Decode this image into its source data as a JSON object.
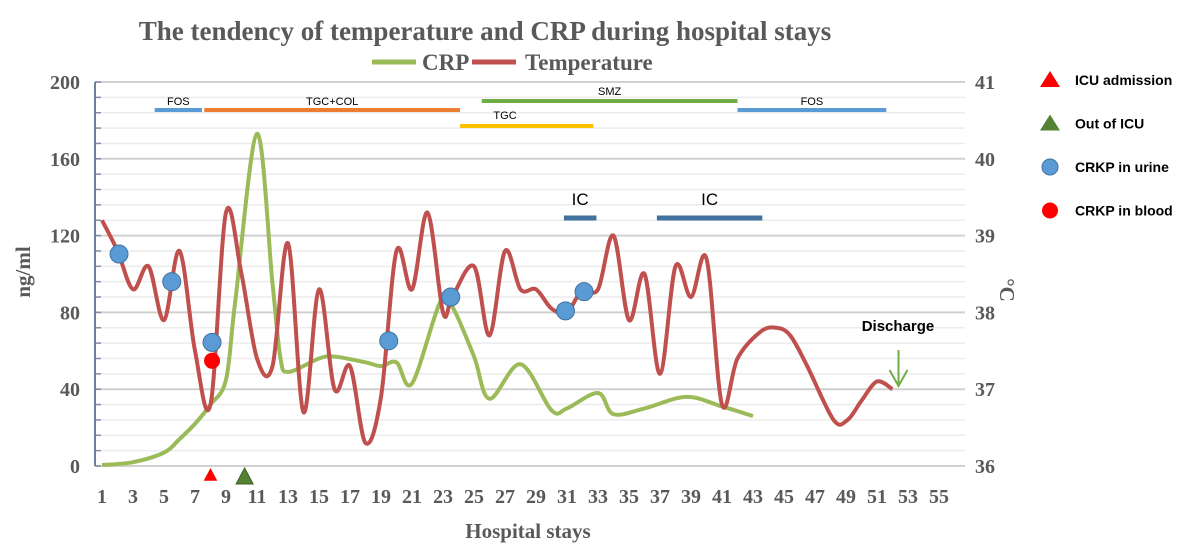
{
  "chart_data": {
    "type": "line",
    "title": "The tendency of temperature and CRP during hospital stays",
    "xlabel": "Hospital stays",
    "ylabel_left": "ng/ml",
    "ylabel_right": "°C",
    "x_ticks": [
      "1",
      "3",
      "5",
      "7",
      "9",
      "11",
      "13",
      "15",
      "17",
      "19",
      "21",
      "23",
      "25",
      "27",
      "29",
      "31",
      "33",
      "35",
      "37",
      "39",
      "41",
      "43",
      "45",
      "47",
      "49",
      "51",
      "53",
      "55"
    ],
    "xlim": [
      1,
      55
    ],
    "y_left": {
      "ticks": [
        "0",
        "40",
        "80",
        "120",
        "160",
        "200"
      ],
      "ylim": [
        0,
        200
      ],
      "minor_step": 8
    },
    "y_right": {
      "ticks": [
        "36",
        "37",
        "38",
        "39",
        "40",
        "41"
      ],
      "ylim": [
        36,
        41
      ]
    },
    "grid": true,
    "legend_top": [
      {
        "name": "CRP",
        "color": "#9bbb59"
      },
      {
        "name": "Temperature",
        "color": "#c0504d"
      }
    ],
    "series": [
      {
        "name": "CRP",
        "axis": "left",
        "color": "#9bbb59",
        "points": [
          [
            1,
            0.5
          ],
          [
            3,
            2
          ],
          [
            5,
            7
          ],
          [
            6,
            14
          ],
          [
            7,
            22
          ],
          [
            8,
            32
          ],
          [
            9,
            45
          ],
          [
            9.6,
            86
          ],
          [
            11,
            173
          ],
          [
            12,
            95
          ],
          [
            12.5,
            57
          ],
          [
            13,
            49
          ],
          [
            15,
            56
          ],
          [
            16,
            57
          ],
          [
            18,
            54
          ],
          [
            19,
            52
          ],
          [
            20,
            54
          ],
          [
            21,
            43
          ],
          [
            22.8,
            85
          ],
          [
            23.6,
            83
          ],
          [
            25,
            57
          ],
          [
            26,
            35
          ],
          [
            28,
            53
          ],
          [
            30,
            29
          ],
          [
            31,
            30
          ],
          [
            33,
            38
          ],
          [
            34,
            27
          ],
          [
            36,
            30
          ],
          [
            38.7,
            36
          ],
          [
            41,
            31
          ],
          [
            43,
            26
          ]
        ]
      },
      {
        "name": "Temperature",
        "axis": "right",
        "color": "#c0504d",
        "points": [
          [
            1,
            39.2
          ],
          [
            2,
            38.8
          ],
          [
            3,
            38.3
          ],
          [
            4,
            38.6
          ],
          [
            5,
            37.9
          ],
          [
            6,
            38.8
          ],
          [
            7,
            37.5
          ],
          [
            8,
            36.8
          ],
          [
            9,
            39.3
          ],
          [
            10,
            38.5
          ],
          [
            11,
            37.4
          ],
          [
            12,
            37.3
          ],
          [
            13,
            38.9
          ],
          [
            14,
            36.7
          ],
          [
            15,
            38.3
          ],
          [
            16,
            37.0
          ],
          [
            17,
            37.3
          ],
          [
            18,
            36.3
          ],
          [
            19,
            36.9
          ],
          [
            20,
            38.8
          ],
          [
            21,
            38.3
          ],
          [
            22,
            39.3
          ],
          [
            23,
            38.0
          ],
          [
            23.6,
            38.2
          ],
          [
            25,
            38.6
          ],
          [
            26,
            37.7
          ],
          [
            27,
            38.8
          ],
          [
            28,
            38.3
          ],
          [
            29,
            38.3
          ],
          [
            30,
            38.05
          ],
          [
            31,
            38.0
          ],
          [
            32,
            38.3
          ],
          [
            33,
            38.3
          ],
          [
            34,
            39.0
          ],
          [
            35,
            37.9
          ],
          [
            36,
            38.5
          ],
          [
            37,
            37.2
          ],
          [
            38,
            38.6
          ],
          [
            39,
            38.2
          ],
          [
            40,
            38.7
          ],
          [
            41,
            36.8
          ],
          [
            42,
            37.4
          ],
          [
            43.5,
            37.75
          ],
          [
            44.5,
            37.8
          ],
          [
            45.4,
            37.7
          ],
          [
            46.5,
            37.3
          ],
          [
            48.2,
            36.6
          ],
          [
            49.1,
            36.6
          ],
          [
            50,
            36.85
          ],
          [
            51,
            37.1
          ],
          [
            52,
            37.0
          ]
        ]
      }
    ],
    "markers": {
      "crkp_urine": {
        "color": "#5b9bd5",
        "points": [
          [
            2.1,
            38.76
          ],
          [
            5.5,
            38.4
          ],
          [
            8.1,
            37.61
          ],
          [
            19.5,
            37.63
          ],
          [
            23.5,
            38.2
          ],
          [
            30.9,
            38.02
          ],
          [
            32.1,
            38.27
          ]
        ]
      },
      "crkp_blood": {
        "color": "#ff0000",
        "points": [
          [
            8.1,
            37.37
          ]
        ]
      },
      "icu_admission": {
        "color": "#ff0000",
        "day": 8
      },
      "out_of_icu": {
        "color": "#548235",
        "day": 10.2
      }
    },
    "treatments": [
      {
        "label": "FOS",
        "start": 4.4,
        "end": 7.45,
        "color": "#5b9bd5",
        "row": 1
      },
      {
        "label": "TGC+COL",
        "start": 7.6,
        "end": 24.1,
        "color": "#ed7d31",
        "row": 1
      },
      {
        "label": "SMZ",
        "start": 25.5,
        "end": 42.0,
        "color": "#70ad47",
        "row": 0
      },
      {
        "label": "TGC",
        "start": 24.1,
        "end": 32.7,
        "color": "#ffc000",
        "row": 2
      },
      {
        "label": "FOS",
        "start": 42.0,
        "end": 51.6,
        "color": "#5b9bd5",
        "row": 1
      },
      {
        "label": "IC",
        "start": 30.8,
        "end": 32.9,
        "color": "#41719c",
        "row": 3
      },
      {
        "label": "IC",
        "start": 36.8,
        "end": 43.6,
        "color": "#41719c",
        "row": 3
      }
    ],
    "annotation": {
      "label": "Discharge",
      "day": 52,
      "arrow_color": "#70ad47"
    },
    "legend_right": [
      {
        "label": "ICU admission",
        "symbol": "triangle",
        "color": "#ff0000"
      },
      {
        "label": "Out of ICU",
        "symbol": "triangle",
        "color": "#548235"
      },
      {
        "label": "CRKP in urine",
        "symbol": "circle",
        "color": "#5b9bd5"
      },
      {
        "label": "CRKP in blood",
        "symbol": "circle",
        "color": "#ff0000"
      }
    ]
  }
}
